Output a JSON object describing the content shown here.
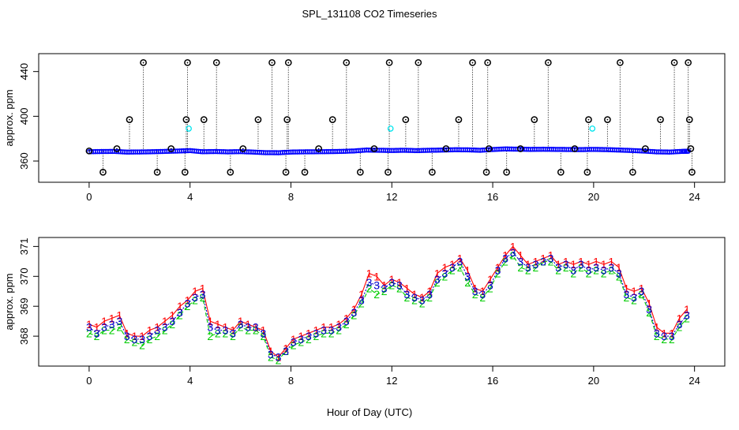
{
  "figure": {
    "title": "SPL_131108  CO2 Timeseries",
    "xlabel": "Hour of Day (UTC)"
  },
  "chart_data": [
    {
      "type": "scatter",
      "title": "SPL_131108  CO2 Timeseries",
      "ylabel": "approx. ppm",
      "xlabel": "",
      "xlim": [
        -2.0,
        25.2
      ],
      "ylim": [
        341,
        456
      ],
      "xticks": [
        0,
        4,
        8,
        12,
        16,
        20,
        24
      ],
      "yticks": [
        360,
        400,
        440
      ],
      "grid": false,
      "baseline_series": {
        "name": "",
        "color": "#0000ff",
        "marker": "circle",
        "x": [
          0.0,
          0.5,
          1.0,
          1.5,
          2.0,
          2.5,
          3.0,
          3.5,
          4.0,
          4.5,
          5.0,
          5.5,
          6.0,
          6.5,
          7.0,
          7.5,
          8.0,
          8.5,
          9.0,
          9.5,
          10.0,
          10.5,
          11.0,
          11.5,
          12.0,
          12.5,
          13.0,
          13.5,
          14.0,
          14.5,
          15.0,
          15.5,
          16.0,
          16.5,
          17.0,
          17.5,
          18.0,
          18.5,
          19.0,
          19.5,
          20.0,
          20.5,
          21.0,
          21.5,
          22.0,
          22.5,
          23.0,
          23.5,
          23.8
        ],
        "y": [
          368.3,
          368.5,
          368.6,
          368.0,
          368.1,
          368.3,
          368.6,
          368.9,
          369.3,
          368.3,
          368.5,
          368.2,
          368.4,
          368.0,
          367.5,
          367.4,
          368.0,
          368.2,
          368.3,
          368.4,
          368.6,
          369.0,
          369.8,
          369.6,
          369.4,
          369.6,
          369.3,
          369.6,
          369.8,
          370.1,
          370.0,
          369.6,
          370.3,
          370.8,
          370.6,
          370.4,
          370.5,
          370.4,
          370.3,
          370.2,
          370.4,
          370.2,
          369.8,
          369.4,
          368.9,
          368.2,
          368.0,
          368.6,
          368.8
        ]
      },
      "spikes": {
        "color": "#000000",
        "marker": "circle-with-dot",
        "baseline": 369,
        "x": [
          0.0,
          0.55,
          1.1,
          1.6,
          2.15,
          2.7,
          3.25,
          3.8,
          3.85,
          3.9,
          4.55,
          5.05,
          5.6,
          6.1,
          6.7,
          7.25,
          7.8,
          7.85,
          7.9,
          8.55,
          9.1,
          9.65,
          10.2,
          10.75,
          11.3,
          11.85,
          11.9,
          12.55,
          13.05,
          13.6,
          14.15,
          14.65,
          15.2,
          15.75,
          15.8,
          15.85,
          16.55,
          17.1,
          17.65,
          18.2,
          18.7,
          19.25,
          19.75,
          19.8,
          20.55,
          21.05,
          21.55,
          22.05,
          22.65,
          23.2,
          23.75,
          23.8,
          23.85,
          23.9
        ],
        "y": [
          369,
          350,
          371,
          397,
          448,
          350,
          371,
          350,
          397,
          448,
          397,
          448,
          350,
          371,
          397,
          448,
          350,
          397,
          448,
          350,
          371,
          397,
          448,
          350,
          371,
          350,
          448,
          397,
          448,
          350,
          371,
          397,
          448,
          350,
          448,
          371,
          350,
          371,
          397,
          448,
          350,
          371,
          350,
          397,
          397,
          448,
          350,
          371,
          397,
          448,
          448,
          397,
          371,
          350
        ]
      },
      "cyan_points": {
        "color": "#00e5ee",
        "x": [
          3.95,
          11.95,
          19.95
        ],
        "y": [
          389,
          389,
          389
        ]
      }
    },
    {
      "type": "line",
      "title": "",
      "ylabel": "approx. ppm",
      "xlabel": "Hour of Day (UTC)",
      "xlim": [
        -2.0,
        25.2
      ],
      "ylim": [
        367.0,
        371.3
      ],
      "xticks": [
        0,
        4,
        8,
        12,
        16,
        20,
        24
      ],
      "yticks": [
        368,
        369,
        370,
        371
      ],
      "grid": false,
      "series": [
        {
          "name": "1",
          "color": "#ff0000",
          "marker_char": "1",
          "x": [
            0.0,
            0.3,
            0.6,
            0.9,
            1.2,
            1.5,
            1.8,
            2.1,
            2.4,
            2.7,
            3.0,
            3.3,
            3.6,
            3.9,
            4.2,
            4.5,
            4.8,
            5.1,
            5.4,
            5.7,
            6.0,
            6.3,
            6.6,
            6.9,
            7.2,
            7.5,
            7.8,
            8.1,
            8.4,
            8.7,
            9.0,
            9.3,
            9.6,
            9.9,
            10.2,
            10.5,
            10.8,
            11.1,
            11.4,
            11.7,
            12.0,
            12.3,
            12.6,
            12.9,
            13.2,
            13.5,
            13.8,
            14.1,
            14.4,
            14.7,
            15.0,
            15.3,
            15.6,
            15.9,
            16.2,
            16.5,
            16.8,
            17.1,
            17.4,
            17.7,
            18.0,
            18.3,
            18.6,
            18.9,
            19.2,
            19.5,
            19.8,
            20.1,
            20.4,
            20.7,
            21.0,
            21.3,
            21.6,
            21.9,
            22.2,
            22.5,
            22.8,
            23.1,
            23.4,
            23.7
          ],
          "y": [
            368.4,
            368.3,
            368.5,
            368.6,
            368.7,
            368.1,
            368.0,
            368.0,
            368.2,
            368.3,
            368.5,
            368.7,
            369.0,
            369.2,
            369.5,
            369.6,
            368.5,
            368.4,
            368.3,
            368.2,
            368.5,
            368.4,
            368.3,
            368.2,
            367.5,
            367.3,
            367.6,
            367.9,
            368.0,
            368.1,
            368.2,
            368.3,
            368.3,
            368.4,
            368.6,
            368.9,
            369.4,
            370.1,
            370.0,
            369.7,
            369.9,
            369.8,
            369.6,
            369.4,
            369.3,
            369.5,
            370.1,
            370.3,
            370.4,
            370.6,
            370.2,
            369.6,
            369.5,
            369.9,
            370.3,
            370.7,
            371.0,
            370.7,
            370.4,
            370.5,
            370.6,
            370.7,
            370.4,
            370.5,
            370.4,
            370.5,
            370.4,
            370.5,
            370.4,
            370.5,
            370.3,
            369.6,
            369.5,
            369.6,
            369.1,
            368.3,
            368.1,
            368.1,
            368.6,
            368.9
          ]
        },
        {
          "name": "2",
          "color": "#00cd00",
          "marker_char": "2",
          "x": [
            0.0,
            0.3,
            0.6,
            0.9,
            1.2,
            1.5,
            1.8,
            2.1,
            2.4,
            2.7,
            3.0,
            3.3,
            3.6,
            3.9,
            4.2,
            4.5,
            4.8,
            5.1,
            5.4,
            5.7,
            6.0,
            6.3,
            6.6,
            6.9,
            7.2,
            7.5,
            7.8,
            8.1,
            8.4,
            8.7,
            9.0,
            9.3,
            9.6,
            9.9,
            10.2,
            10.5,
            10.8,
            11.1,
            11.4,
            11.7,
            12.0,
            12.3,
            12.6,
            12.9,
            13.2,
            13.5,
            13.8,
            14.1,
            14.4,
            14.7,
            15.0,
            15.3,
            15.6,
            15.9,
            16.2,
            16.5,
            16.8,
            17.1,
            17.4,
            17.7,
            18.0,
            18.3,
            18.6,
            18.9,
            19.2,
            19.5,
            19.8,
            20.1,
            20.4,
            20.7,
            21.0,
            21.3,
            21.6,
            21.9,
            22.2,
            22.5,
            22.8,
            23.1,
            23.4,
            23.7
          ],
          "y": [
            368.1,
            368.0,
            368.2,
            368.2,
            368.3,
            367.9,
            367.8,
            367.7,
            367.9,
            368.0,
            368.2,
            368.4,
            368.7,
            369.0,
            369.2,
            369.3,
            368.0,
            368.1,
            368.1,
            368.0,
            368.3,
            368.2,
            368.2,
            368.0,
            367.3,
            367.2,
            367.5,
            367.7,
            367.8,
            367.9,
            368.0,
            368.1,
            368.1,
            368.2,
            368.4,
            368.7,
            369.1,
            369.6,
            369.4,
            369.5,
            369.7,
            369.6,
            369.3,
            369.2,
            369.1,
            369.3,
            369.8,
            370.0,
            370.2,
            370.3,
            369.8,
            369.4,
            369.3,
            369.6,
            370.1,
            370.5,
            370.7,
            370.3,
            370.2,
            370.3,
            370.5,
            370.5,
            370.2,
            370.3,
            370.1,
            370.3,
            370.1,
            370.2,
            370.1,
            370.2,
            370.0,
            369.3,
            369.2,
            369.4,
            368.8,
            368.0,
            367.9,
            367.9,
            368.3,
            368.6
          ]
        },
        {
          "name": "3",
          "color": "#0000cd",
          "marker_char": "3",
          "x": [
            0.0,
            0.3,
            0.6,
            0.9,
            1.2,
            1.5,
            1.8,
            2.1,
            2.4,
            2.7,
            3.0,
            3.3,
            3.6,
            3.9,
            4.2,
            4.5,
            4.8,
            5.1,
            5.4,
            5.7,
            6.0,
            6.3,
            6.6,
            6.9,
            7.2,
            7.5,
            7.8,
            8.1,
            8.4,
            8.7,
            9.0,
            9.3,
            9.6,
            9.9,
            10.2,
            10.5,
            10.8,
            11.1,
            11.4,
            11.7,
            12.0,
            12.3,
            12.6,
            12.9,
            13.2,
            13.5,
            13.8,
            14.1,
            14.4,
            14.7,
            15.0,
            15.3,
            15.6,
            15.9,
            16.2,
            16.5,
            16.8,
            17.1,
            17.4,
            17.7,
            18.0,
            18.3,
            18.6,
            18.9,
            19.2,
            19.5,
            19.8,
            20.1,
            20.4,
            20.7,
            21.0,
            21.3,
            21.6,
            21.9,
            22.2,
            22.5,
            22.8,
            23.1,
            23.4,
            23.7
          ],
          "y": [
            368.3,
            368.1,
            368.3,
            368.4,
            368.5,
            368.0,
            367.9,
            367.9,
            368.0,
            368.2,
            368.3,
            368.5,
            368.8,
            369.1,
            369.3,
            369.4,
            368.3,
            368.2,
            368.2,
            368.1,
            368.4,
            368.3,
            368.3,
            368.1,
            367.4,
            367.3,
            367.5,
            367.8,
            367.9,
            368.0,
            368.1,
            368.2,
            368.2,
            368.3,
            368.5,
            368.8,
            369.2,
            369.8,
            369.7,
            369.6,
            369.8,
            369.7,
            369.4,
            369.3,
            369.2,
            369.4,
            369.9,
            370.1,
            370.3,
            370.5,
            370.0,
            369.5,
            369.4,
            369.7,
            370.2,
            370.6,
            370.8,
            370.5,
            370.3,
            370.4,
            370.5,
            370.6,
            370.3,
            370.4,
            370.2,
            370.4,
            370.2,
            370.3,
            370.2,
            370.3,
            370.1,
            369.4,
            369.3,
            369.5,
            368.9,
            368.1,
            368.0,
            368.0,
            368.4,
            368.7
          ]
        }
      ]
    }
  ]
}
